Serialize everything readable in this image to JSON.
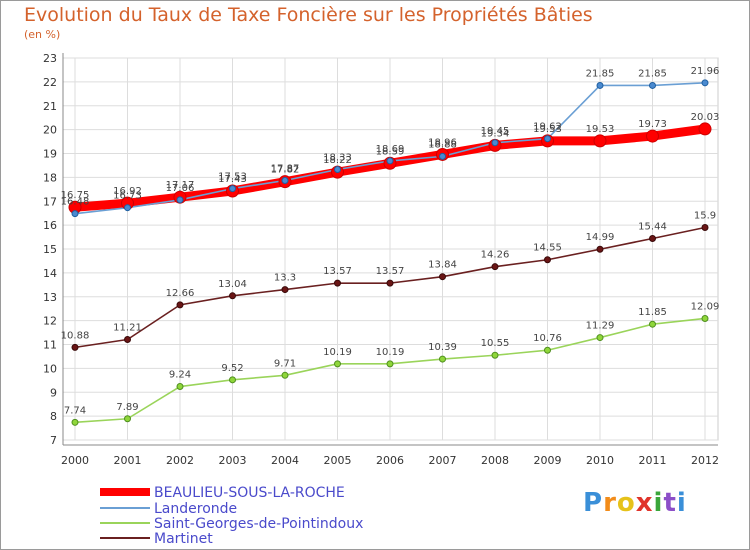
{
  "title": "Evolution du Taux de Taxe Foncière sur les Propriétés Bâties",
  "unit": "(en %)",
  "logo": "Proxiti",
  "chart_data": {
    "type": "line",
    "title": "Evolution du Taux de Taxe Foncière sur les Propriétés Bâties",
    "ylabel": "(en %)",
    "xlabel": "",
    "x": [
      "2000",
      "2001",
      "2002",
      "2003",
      "2004",
      "2005",
      "2006",
      "2007",
      "2008",
      "2009",
      "2010",
      "2011",
      "2012"
    ],
    "ylim": [
      7,
      23
    ],
    "yticks": [
      7,
      8,
      9,
      10,
      11,
      12,
      13,
      14,
      15,
      16,
      17,
      18,
      19,
      20,
      21,
      22,
      23
    ],
    "grid": true,
    "legend": "bottom-left",
    "series": [
      {
        "name": "BEAULIEU-SOUS-LA-ROCHE",
        "color": "#ff0000",
        "values": [
          16.75,
          16.92,
          17.17,
          17.43,
          17.82,
          18.22,
          18.59,
          18.96,
          19.34,
          19.53,
          19.53,
          19.73,
          20.03
        ]
      },
      {
        "name": "Landeronde",
        "color": "#6a9fd4",
        "values": [
          16.48,
          16.73,
          17.06,
          17.53,
          17.87,
          18.33,
          18.69,
          18.88,
          19.45,
          19.62,
          21.85,
          21.85,
          21.96
        ]
      },
      {
        "name": "Saint-Georges-de-Pointindoux",
        "color": "#9ad45a",
        "values": [
          7.74,
          7.89,
          9.24,
          9.52,
          9.71,
          10.19,
          10.19,
          10.39,
          10.55,
          10.76,
          11.29,
          11.85,
          12.09
        ]
      },
      {
        "name": "Martinet",
        "color": "#7a2a2a",
        "values": [
          10.88,
          11.21,
          12.66,
          13.04,
          13.3,
          13.57,
          13.57,
          13.84,
          14.26,
          14.55,
          14.99,
          15.44,
          15.9
        ]
      }
    ],
    "data_labels": [
      [
        "16.75",
        "16.92",
        "17.17",
        "17.43",
        "17.82",
        "18.22",
        "18.59",
        "18.96",
        "19.34",
        "19.53",
        "19.53",
        "19.73",
        "20.03"
      ],
      [
        "16.48",
        "16.73",
        "17.06",
        "17.53",
        "17.87",
        "18.33",
        "18.69",
        "18.88",
        "19.45",
        "19.62",
        "21.85",
        "21.85",
        "21.96"
      ],
      [
        "7.74",
        "7.89",
        "9.24",
        "9.52",
        "9.71",
        "10.19",
        "10.19",
        "10.39",
        "10.55",
        "10.76",
        "11.29",
        "11.85",
        "12.09"
      ],
      [
        "10.88",
        "11.21",
        "12.66",
        "13.04",
        "13.3",
        "13.57",
        "13.57",
        "13.84",
        "14.26",
        "14.55",
        "14.99",
        "15.44",
        "15.9"
      ]
    ]
  }
}
